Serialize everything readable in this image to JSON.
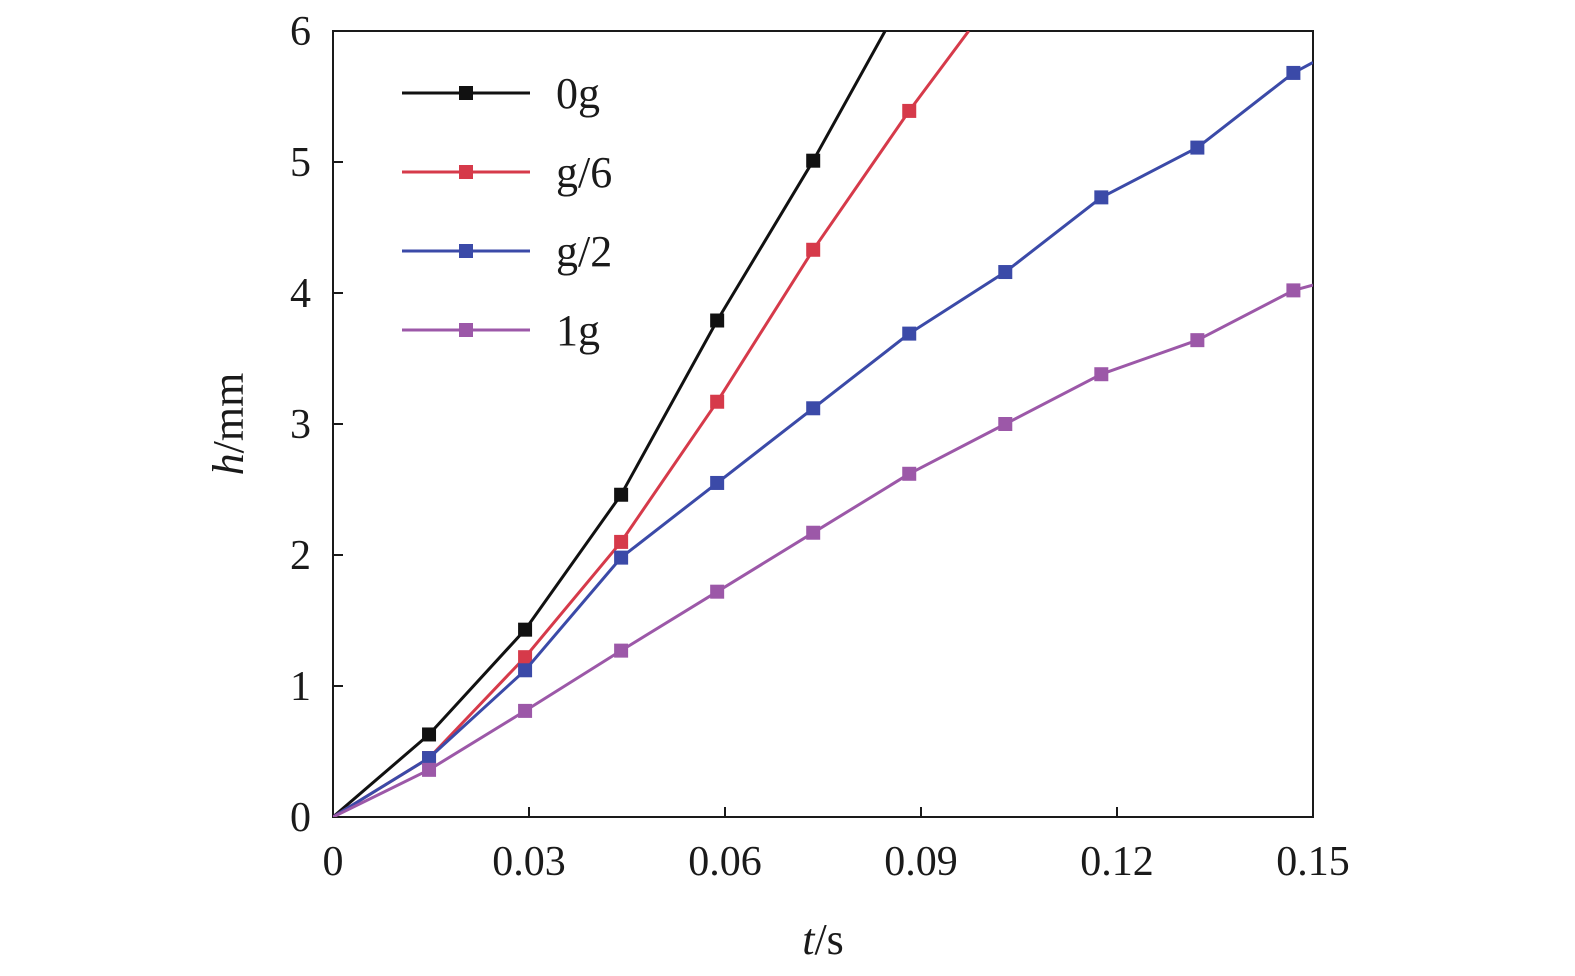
{
  "chart_data": {
    "type": "line",
    "xlabel": {
      "var": "t",
      "unit": "/s"
    },
    "ylabel": {
      "var": "h",
      "unit": "/mm"
    },
    "xlim": [
      0,
      0.15
    ],
    "ylim": [
      0,
      6
    ],
    "xticks": [
      "0",
      "0.03",
      "0.06",
      "0.09",
      "0.12",
      "0.15"
    ],
    "yticks": [
      "0",
      "1",
      "2",
      "3",
      "4",
      "5",
      "6"
    ],
    "grid": false,
    "legend_position": "top-left",
    "series": [
      {
        "name": "0g",
        "color": "#111111",
        "marker": "square",
        "x": [
          0,
          0.0147,
          0.0294,
          0.0441,
          0.0588,
          0.0735
        ],
        "y": [
          0,
          0.63,
          1.43,
          2.46,
          3.79,
          5.01
        ],
        "x_end": 0.0845,
        "y_end": 6.0
      },
      {
        "name": "g/6",
        "color": "#d63a4a",
        "marker": "square",
        "x": [
          0,
          0.0147,
          0.0294,
          0.0441,
          0.0588,
          0.0735,
          0.0882
        ],
        "y": [
          0,
          0.45,
          1.22,
          2.1,
          3.17,
          4.33,
          5.39
        ],
        "x_end": 0.0973,
        "y_end": 6.0
      },
      {
        "name": "g/2",
        "color": "#3b4aa8",
        "marker": "square",
        "x": [
          0,
          0.0147,
          0.0294,
          0.0441,
          0.0588,
          0.0735,
          0.0882,
          0.1029,
          0.1176,
          0.1323,
          0.147
        ],
        "y": [
          0,
          0.45,
          1.12,
          1.98,
          2.55,
          3.12,
          3.69,
          4.16,
          4.73,
          5.11,
          5.68
        ],
        "x_end": 0.15,
        "y_end": 5.76
      },
      {
        "name": "1g",
        "color": "#9c58a8",
        "marker": "square",
        "x": [
          0,
          0.0147,
          0.0294,
          0.0441,
          0.0588,
          0.0735,
          0.0882,
          0.1029,
          0.1176,
          0.1323,
          0.147
        ],
        "y": [
          0,
          0.36,
          0.81,
          1.27,
          1.72,
          2.17,
          2.62,
          3.0,
          3.38,
          3.64,
          4.02
        ],
        "x_end": 0.15,
        "y_end": 4.06
      }
    ]
  }
}
